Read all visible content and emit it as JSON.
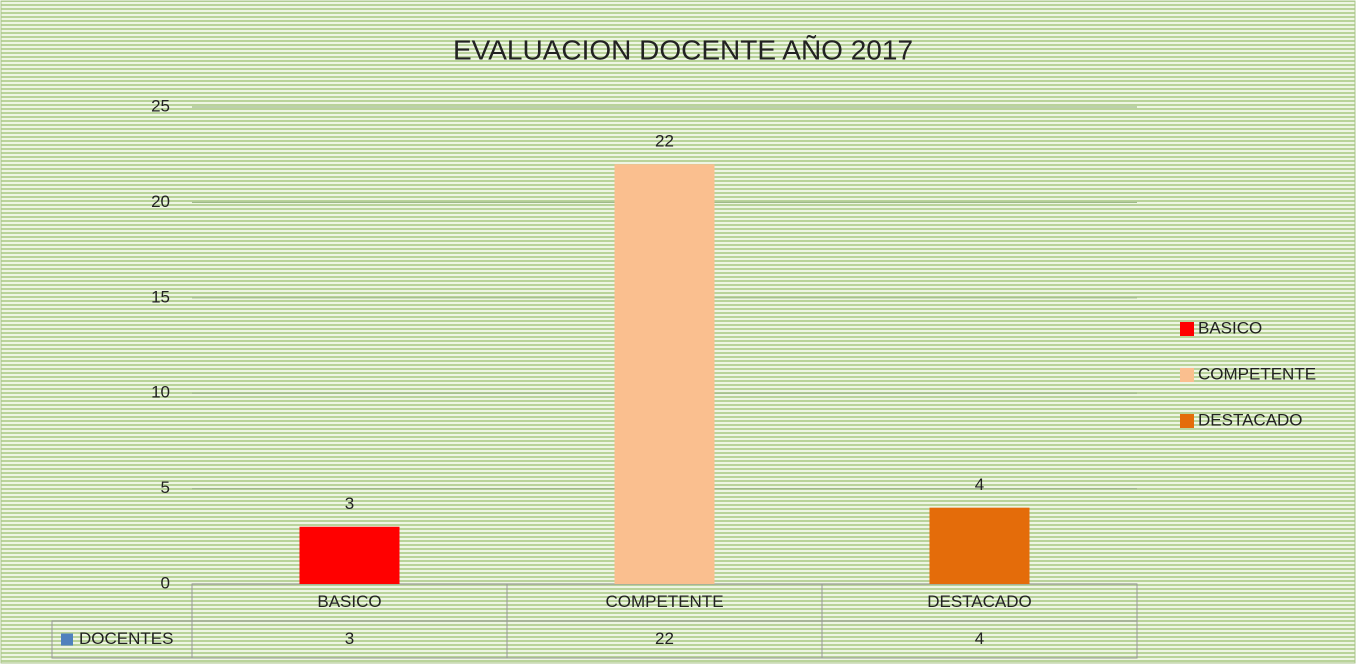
{
  "chart_data": {
    "type": "bar",
    "title": "EVALUACION DOCENTE   AÑO 2017",
    "categories": [
      "BASICO",
      "COMPETENTE",
      "DESTACADO"
    ],
    "series": [
      {
        "name": "DOCENTES",
        "color": "#4f81bd",
        "values": [
          3,
          22,
          4
        ]
      }
    ],
    "colors": [
      "#ff0000",
      "#fabf8f",
      "#e46c0a"
    ],
    "ylim": [
      0,
      25
    ],
    "yticks": [
      0,
      5,
      10,
      15,
      20,
      25
    ],
    "grid": true,
    "legend": "right",
    "data_table": true
  }
}
